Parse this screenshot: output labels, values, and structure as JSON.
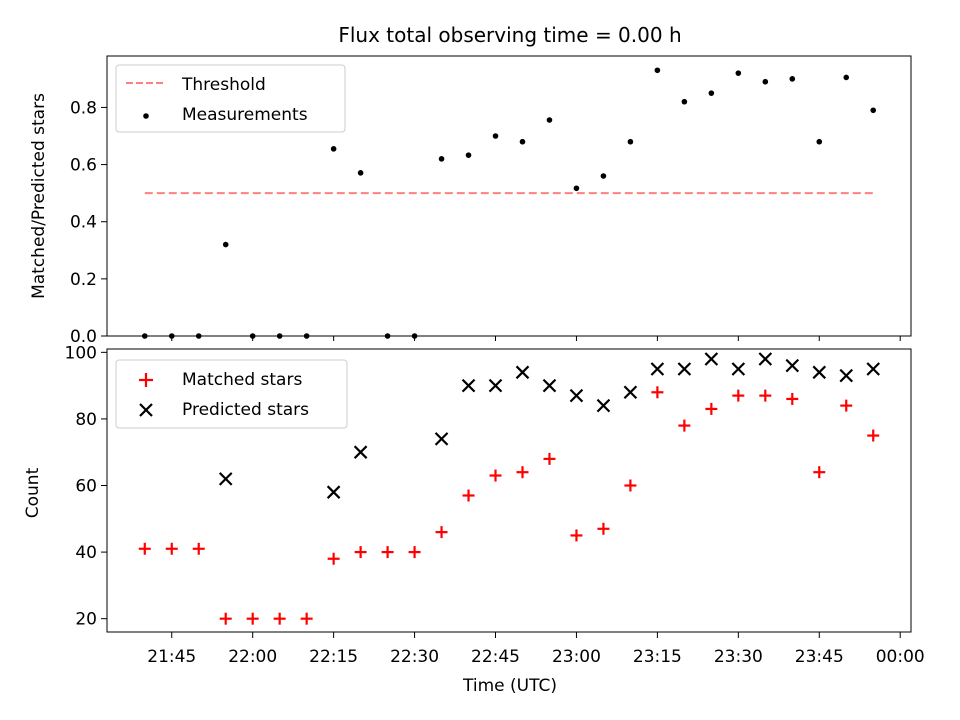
{
  "colors": {
    "threshold": "#ff7f7f",
    "measurement": "#000000",
    "matched": "#ff0000",
    "predicted": "#000000"
  },
  "chart_data": [
    {
      "type": "scatter",
      "title": "Flux total observing time = 0.00 h",
      "ylabel": "Matched/Predicted stars",
      "xlabel": "",
      "xlim": [
        "21:33",
        "00:02"
      ],
      "ylim": [
        0,
        0.98
      ],
      "yticks": [
        0.0,
        0.2,
        0.4,
        0.6,
        0.8
      ],
      "ytick_labels": [
        "0.0",
        "0.2",
        "0.4",
        "0.6",
        "0.8"
      ],
      "legend": {
        "position": "top-left",
        "entries": [
          "Threshold",
          "Measurements"
        ]
      },
      "x": [
        "21:40",
        "21:45",
        "21:50",
        "21:55",
        "22:00",
        "22:05",
        "22:10",
        "22:15",
        "22:20",
        "22:25",
        "22:30",
        "22:35",
        "22:40",
        "22:45",
        "22:50",
        "22:55",
        "23:00",
        "23:05",
        "23:10",
        "23:15",
        "23:20",
        "23:25",
        "23:30",
        "23:35",
        "23:40",
        "23:45",
        "23:50",
        "23:55"
      ],
      "series": [
        {
          "name": "Threshold",
          "kind": "line",
          "dashed": true,
          "x": [
            "21:40",
            "23:55"
          ],
          "values": [
            0.5,
            0.5
          ]
        },
        {
          "name": "Measurements",
          "kind": "scatter",
          "marker": "dot",
          "values": [
            0.0,
            0.0,
            0.0,
            0.32,
            0.0,
            0.0,
            0.0,
            0.655,
            0.571,
            0.0,
            0.0,
            0.62,
            0.633,
            0.7,
            0.68,
            0.756,
            0.517,
            0.56,
            0.68,
            0.93,
            0.82,
            0.85,
            0.92,
            0.89,
            0.9,
            0.68,
            0.905,
            0.79
          ]
        }
      ]
    },
    {
      "type": "scatter",
      "title": "",
      "ylabel": "Count",
      "xlabel": "Time (UTC)",
      "xlim": [
        "21:33",
        "00:02"
      ],
      "ylim": [
        16,
        101
      ],
      "yticks": [
        20,
        40,
        60,
        80,
        100
      ],
      "ytick_labels": [
        "20",
        "40",
        "60",
        "80",
        "100"
      ],
      "xticks": [
        "21:45",
        "22:00",
        "22:15",
        "22:30",
        "22:45",
        "23:00",
        "23:15",
        "23:30",
        "23:45",
        "00:00"
      ],
      "legend": {
        "position": "top-left",
        "entries": [
          "Matched stars",
          "Predicted stars"
        ]
      },
      "series": [
        {
          "name": "Matched stars",
          "kind": "scatter",
          "marker": "plus",
          "x": [
            "21:40",
            "21:45",
            "21:50",
            "21:55",
            "22:00",
            "22:05",
            "22:10",
            "22:15",
            "22:20",
            "22:25",
            "22:30",
            "22:35",
            "22:40",
            "22:45",
            "22:50",
            "22:55",
            "23:00",
            "23:05",
            "23:10",
            "23:15",
            "23:20",
            "23:25",
            "23:30",
            "23:35",
            "23:40",
            "23:45",
            "23:50",
            "23:55"
          ],
          "values": [
            41,
            41,
            41,
            20,
            20,
            20,
            20,
            38,
            40,
            40,
            40,
            46,
            57,
            63,
            64,
            68,
            45,
            47,
            60,
            88,
            78,
            83,
            87,
            87,
            86,
            64,
            84,
            75
          ]
        },
        {
          "name": "Predicted stars",
          "kind": "scatter",
          "marker": "x",
          "x": [
            "21:55",
            "22:15",
            "22:20",
            "22:35",
            "22:40",
            "22:45",
            "22:50",
            "22:55",
            "23:00",
            "23:05",
            "23:10",
            "23:15",
            "23:20",
            "23:25",
            "23:30",
            "23:35",
            "23:40",
            "23:45",
            "23:50",
            "23:55"
          ],
          "values": [
            62,
            58,
            70,
            74,
            90,
            90,
            94,
            90,
            87,
            84,
            88,
            95,
            95,
            98,
            95,
            98,
            96,
            94,
            93,
            95
          ]
        }
      ]
    }
  ]
}
